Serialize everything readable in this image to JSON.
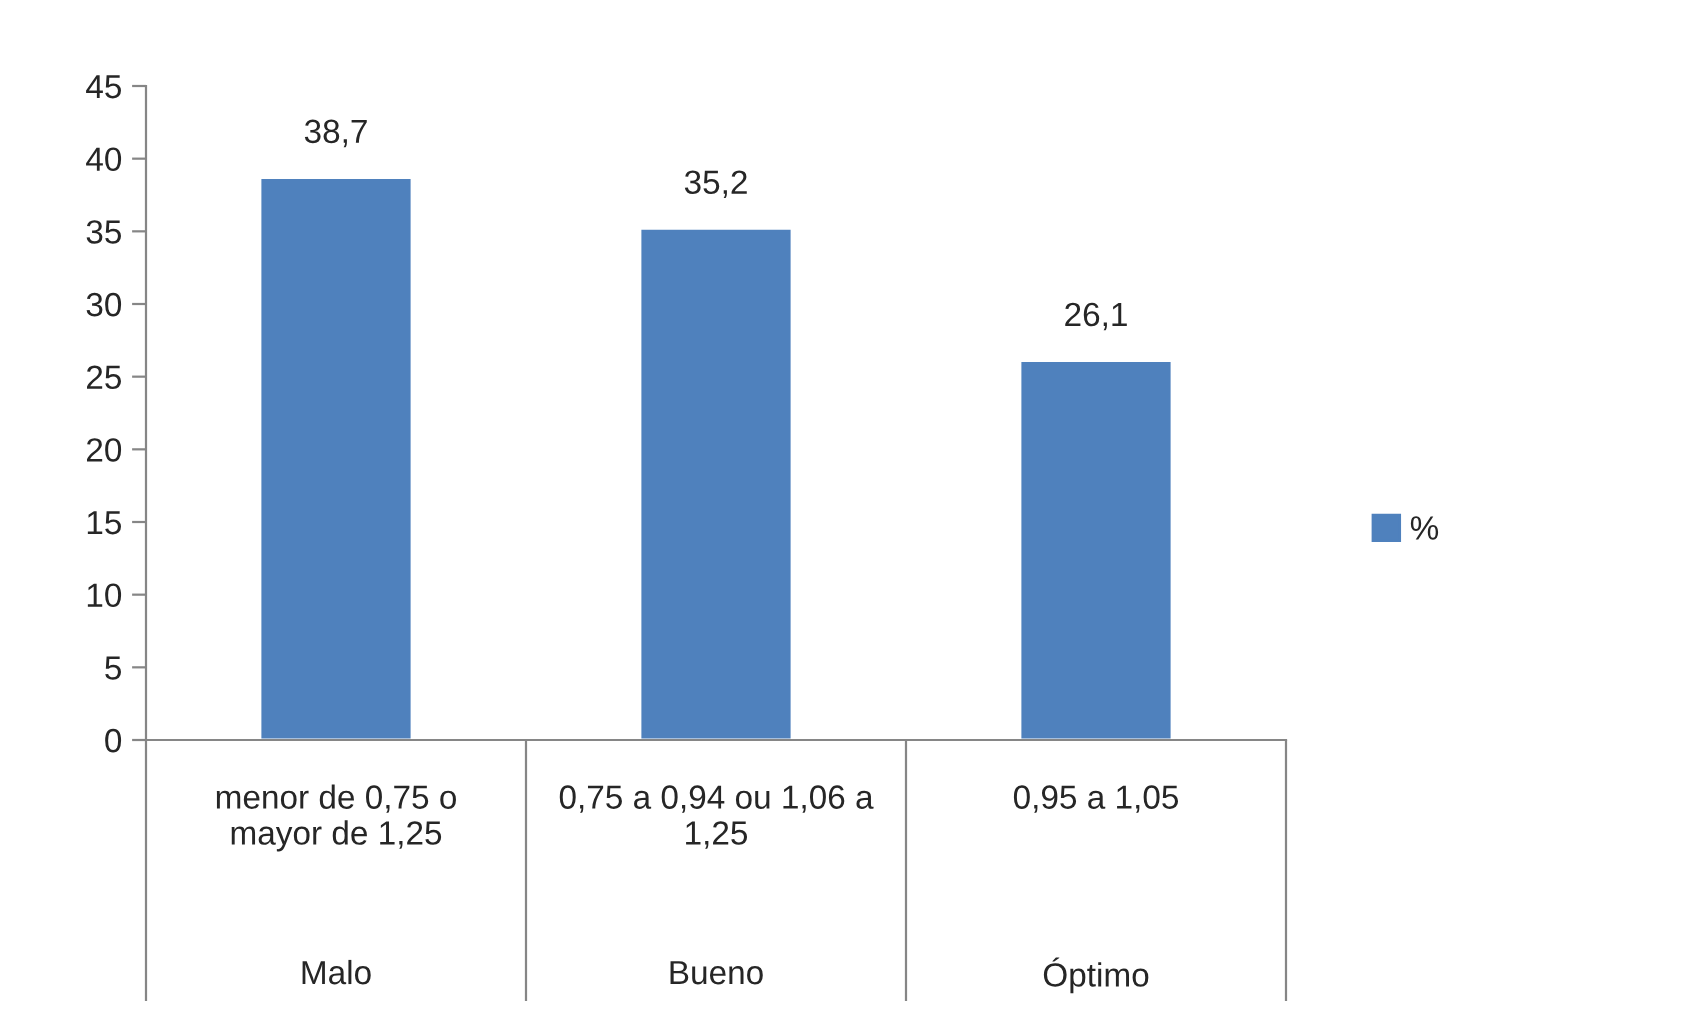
{
  "chart_data": {
    "type": "bar",
    "categories": [
      "menor de 0,75 o\nmayor de 1,25",
      "0,75 a 0,94 ou 1,06 a\n1,25",
      "0,95 a 1,05"
    ],
    "series": [
      {
        "name": "%",
        "color": "#4f81bd",
        "values": [
          38.7,
          35.2,
          26.1
        ]
      }
    ],
    "value_labels": [
      "38,7",
      "35,2",
      "26,1"
    ],
    "annotations": [
      "Malo",
      "Bueno",
      "Óptimo"
    ],
    "ylim": [
      0,
      45
    ],
    "yticks": [
      0,
      5,
      10,
      15,
      20,
      25,
      30,
      35,
      40,
      45
    ],
    "grid": false,
    "legend": "right"
  }
}
